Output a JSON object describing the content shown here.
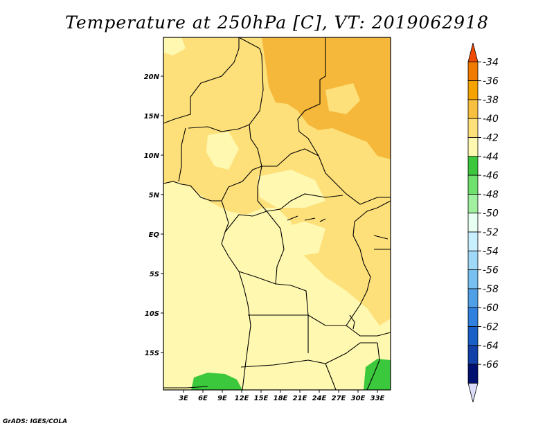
{
  "title": "Temperature at 250hPa [C], VT: 2019062918",
  "credit": "GrADS: IGES/COLA",
  "map": {
    "lat_labels": [
      "20N",
      "15N",
      "10N",
      "5N",
      "EQ",
      "5S",
      "10S",
      "15S"
    ],
    "lon_labels": [
      "3E",
      "6E",
      "9E",
      "12E",
      "15E",
      "18E",
      "21E",
      "24E",
      "27E",
      "30E",
      "33E"
    ]
  },
  "colorbar": {
    "labels": [
      "-34",
      "-36",
      "-38",
      "-40",
      "-42",
      "-44",
      "-46",
      "-48",
      "-50",
      "-52",
      "-54",
      "-56",
      "-58",
      "-60",
      "-62",
      "-64",
      "-66"
    ],
    "colors": [
      "#f04a00",
      "#f07b00",
      "#f5a300",
      "#f8c040",
      "#fde07a",
      "#fff8b0",
      "#3cc83c",
      "#6ee06e",
      "#a0f0a0",
      "#e6fff0",
      "#c8f0ff",
      "#a0d8f8",
      "#78c0f0",
      "#50a0e8",
      "#3080e0",
      "#1860c8",
      "#1040a8",
      "#001070",
      "#dcdcf8"
    ]
  }
}
